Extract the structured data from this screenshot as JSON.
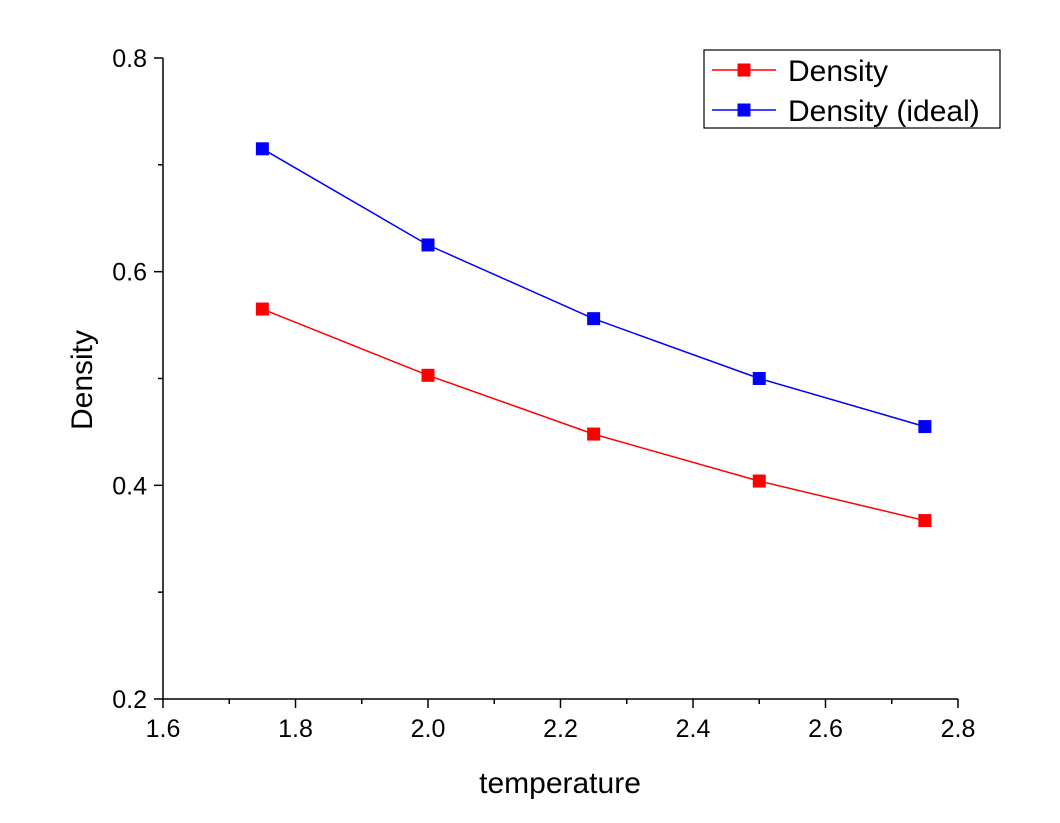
{
  "chart_data": {
    "type": "line",
    "title": "",
    "xlabel": "temperature",
    "ylabel": "Density",
    "xlim": [
      1.6,
      2.8
    ],
    "ylim": [
      0.2,
      0.8
    ],
    "x_major_ticks": [
      1.6,
      1.8,
      2.0,
      2.2,
      2.4,
      2.6,
      2.8
    ],
    "x_tick_labels": [
      "1.6",
      "1.8",
      "2.0",
      "2.2",
      "2.4",
      "2.6",
      "2.8"
    ],
    "x_minor_ticks": [
      1.7,
      1.9,
      2.1,
      2.3,
      2.5,
      2.7
    ],
    "y_major_ticks": [
      0.2,
      0.4,
      0.6,
      0.8
    ],
    "y_tick_labels": [
      "0.2",
      "0.4",
      "0.6",
      "0.8"
    ],
    "y_minor_ticks": [
      0.3,
      0.5,
      0.7
    ],
    "grid": false,
    "legend_position": "top-right",
    "series": [
      {
        "name": "Density",
        "color": "#ff0000",
        "marker": "square",
        "x": [
          1.75,
          2.0,
          2.25,
          2.5,
          2.75
        ],
        "y": [
          0.565,
          0.503,
          0.448,
          0.404,
          0.367
        ]
      },
      {
        "name": "Density (ideal)",
        "color": "#0000ff",
        "marker": "square",
        "x": [
          1.75,
          2.0,
          2.25,
          2.5,
          2.75
        ],
        "y": [
          0.715,
          0.625,
          0.556,
          0.5,
          0.455
        ]
      }
    ]
  }
}
